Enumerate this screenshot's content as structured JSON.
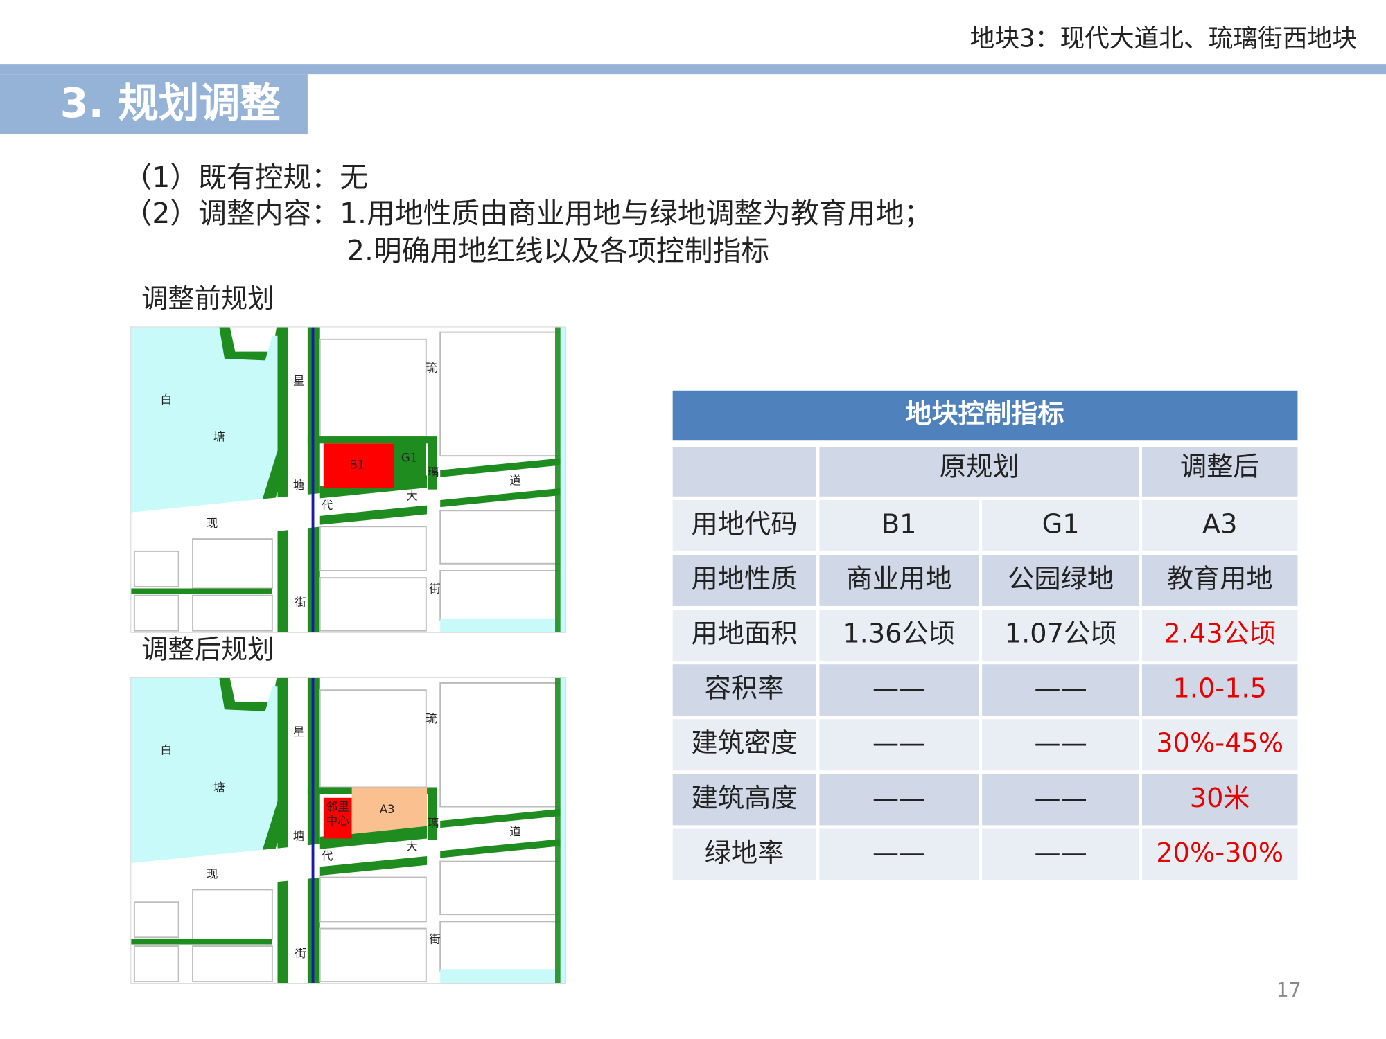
{
  "header": {
    "title": "地块3：现代大道北、琉璃街西地块"
  },
  "section": {
    "title": "3. 规划调整"
  },
  "content": {
    "lines": [
      "（1）既有控规：无",
      "（2）调整内容：1.用地性质由商业用地与绿地调整为教育用地；",
      "2.明确用地红线以及各项控制指标"
    ]
  },
  "maps": [
    {
      "label": "调整前规划",
      "labels": [
        "白",
        "塘",
        "星",
        "塘",
        "街",
        "琉",
        "璃",
        "街",
        "现",
        "代",
        "大",
        "道",
        "B1",
        "G1"
      ]
    },
    {
      "label": "调整后规划",
      "labels": [
        "白",
        "塘",
        "星",
        "塘",
        "街",
        "琉",
        "璃",
        "街",
        "现",
        "代",
        "大",
        "道",
        "邻里",
        "中心",
        "A3"
      ]
    }
  ],
  "table": {
    "title": "地块控制指标",
    "header": [
      "原规划",
      "调整后"
    ],
    "rows": [
      [
        "用地代码",
        "B1",
        "G1",
        "A3"
      ],
      [
        "用地性质",
        "商业用地",
        "公园绿地",
        "教育用地"
      ],
      [
        "用地面积",
        "1.36公顷",
        "1.07公顷",
        "2.43公顷"
      ],
      [
        "容积率",
        "——",
        "——",
        "1.0-1.5"
      ],
      [
        "建筑密度",
        "——",
        "——",
        "30%-45%"
      ],
      [
        "建筑高度",
        "——",
        "——",
        "30米"
      ],
      [
        "绿地率",
        "——",
        "——",
        "20%-30%"
      ]
    ]
  },
  "page_number": "17"
}
